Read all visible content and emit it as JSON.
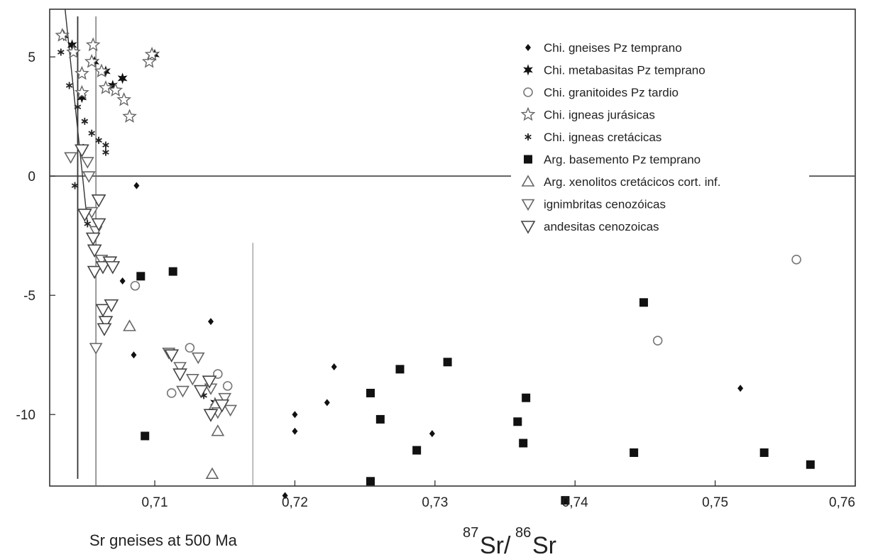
{
  "chart_data": {
    "type": "scatter",
    "xlim": [
      0.7025,
      0.76
    ],
    "ylim": [
      -13,
      7
    ],
    "x_ticks": [
      "0,71",
      "0,72",
      "0,73",
      "0,74",
      "0,75",
      "0,76"
    ],
    "y_ticks": [
      "5",
      "0",
      "-5",
      "-10"
    ],
    "xlabel": {
      "sup1": "87",
      "base1": "Sr/",
      "sup2": "86",
      "base2": "Sr"
    },
    "annotation": "Sr gneises at 500 Ma",
    "reference_lines": {
      "horizontal_y": 0,
      "vertical_x": [
        0.7045,
        0.7058,
        0.717
      ],
      "sloped_line": [
        [
          0.7036,
          7
        ],
        [
          0.7052,
          -2
        ]
      ]
    },
    "legend_position": "top-right",
    "series": [
      {
        "name": "Chi.  gneises Pz temprano",
        "marker": "diamond",
        "points": [
          [
            0.7087,
            -0.4
          ],
          [
            0.7077,
            -4.4
          ],
          [
            0.7085,
            -7.5
          ],
          [
            0.714,
            -6.1
          ],
          [
            0.7193,
            -13.4
          ],
          [
            0.72,
            -10
          ],
          [
            0.72,
            -10.7
          ],
          [
            0.7223,
            -9.5
          ],
          [
            0.7228,
            -8
          ],
          [
            0.7298,
            -10.8
          ],
          [
            0.7518,
            -8.9
          ]
        ]
      },
      {
        "name": "Chi. metabasitas Pz temprano",
        "marker": "star6",
        "points": [
          [
            0.7035,
            5.9
          ],
          [
            0.7041,
            5.5
          ],
          [
            0.7048,
            3.3
          ],
          [
            0.7057,
            4.8
          ],
          [
            0.7065,
            4.4
          ],
          [
            0.707,
            3.8
          ],
          [
            0.7077,
            4.1
          ],
          [
            0.71,
            5.1
          ],
          [
            0.7143,
            -9.5
          ]
        ]
      },
      {
        "name": "Chi. granitoides Pz tardio",
        "marker": "circle",
        "points": [
          [
            0.7086,
            -4.6
          ],
          [
            0.7112,
            -9.1
          ],
          [
            0.7125,
            -7.2
          ],
          [
            0.7145,
            -8.3
          ],
          [
            0.7152,
            -8.8
          ],
          [
            0.7459,
            -6.9
          ],
          [
            0.7558,
            -3.5
          ]
        ]
      },
      {
        "name": "Chi. igneas jurásicas",
        "marker": "star5",
        "points": [
          [
            0.7034,
            5.9
          ],
          [
            0.7042,
            5.2
          ],
          [
            0.7048,
            4.3
          ],
          [
            0.7048,
            3.5
          ],
          [
            0.7056,
            5.5
          ],
          [
            0.7055,
            4.8
          ],
          [
            0.7062,
            4.4
          ],
          [
            0.7065,
            3.7
          ],
          [
            0.7072,
            3.6
          ],
          [
            0.7078,
            3.2
          ],
          [
            0.7082,
            2.5
          ],
          [
            0.7096,
            4.8
          ],
          [
            0.7098,
            5.1
          ]
        ]
      },
      {
        "name": "Chi. igneas cretácicas",
        "marker": "asterisk",
        "points": [
          [
            0.7033,
            5.2
          ],
          [
            0.7039,
            3.8
          ],
          [
            0.7045,
            2.9
          ],
          [
            0.705,
            2.3
          ],
          [
            0.7055,
            1.8
          ],
          [
            0.706,
            1.5
          ],
          [
            0.7065,
            1.3
          ],
          [
            0.7065,
            1.0
          ],
          [
            0.7043,
            -0.4
          ],
          [
            0.7049,
            1.2
          ],
          [
            0.7052,
            -2.0
          ],
          [
            0.7135,
            -9.2
          ]
        ]
      },
      {
        "name": "Arg.  basemento Pz temprano",
        "marker": "square",
        "points": [
          [
            0.709,
            -4.2
          ],
          [
            0.7113,
            -4.0
          ],
          [
            0.7093,
            -10.9
          ],
          [
            0.7254,
            -9.1
          ],
          [
            0.7254,
            -12.8
          ],
          [
            0.7261,
            -10.2
          ],
          [
            0.7275,
            -8.1
          ],
          [
            0.7287,
            -11.5
          ],
          [
            0.7309,
            -7.8
          ],
          [
            0.7359,
            -10.3
          ],
          [
            0.7363,
            -11.2
          ],
          [
            0.7365,
            -9.3
          ],
          [
            0.7393,
            -13.6
          ],
          [
            0.7442,
            -11.6
          ],
          [
            0.7449,
            -5.3
          ],
          [
            0.7535,
            -11.6
          ],
          [
            0.7568,
            -12.1
          ]
        ]
      },
      {
        "name": "Arg. xenolitos cretácicos cort. inf.",
        "marker": "triangle-up",
        "points": [
          [
            0.7082,
            -6.3
          ],
          [
            0.7141,
            -12.5
          ],
          [
            0.7145,
            -10.7
          ],
          [
            0.7143,
            -9.6
          ]
        ]
      },
      {
        "name": "ignimbritas cenozóicas",
        "marker": "triangle-down",
        "points": [
          [
            0.704,
            0.8
          ],
          [
            0.7052,
            0.6
          ],
          [
            0.7053,
            0.0
          ],
          [
            0.7055,
            -1.5
          ],
          [
            0.7058,
            -2.3
          ],
          [
            0.7062,
            -3.5
          ],
          [
            0.7058,
            -7.2
          ],
          [
            0.711,
            -7.4
          ],
          [
            0.7118,
            -8.0
          ],
          [
            0.712,
            -9.0
          ],
          [
            0.7127,
            -8.5
          ],
          [
            0.7131,
            -7.6
          ],
          [
            0.714,
            -8.9
          ],
          [
            0.7145,
            -9.9
          ],
          [
            0.715,
            -9.3
          ],
          [
            0.7154,
            -9.8
          ]
        ]
      },
      {
        "name": "andesitas cenozoicas",
        "marker": "triangle-down-large",
        "points": [
          [
            0.7048,
            1.1
          ],
          [
            0.705,
            -1.6
          ],
          [
            0.7056,
            -2.6
          ],
          [
            0.7057,
            -3.1
          ],
          [
            0.706,
            -1.0
          ],
          [
            0.706,
            -2.0
          ],
          [
            0.7057,
            -4.0
          ],
          [
            0.7063,
            -3.8
          ],
          [
            0.7068,
            -3.6
          ],
          [
            0.707,
            -3.8
          ],
          [
            0.7063,
            -5.6
          ],
          [
            0.7065,
            -6.1
          ],
          [
            0.7069,
            -5.4
          ],
          [
            0.7064,
            -6.4
          ],
          [
            0.7112,
            -7.5
          ],
          [
            0.7118,
            -8.3
          ],
          [
            0.7133,
            -9.0
          ],
          [
            0.7139,
            -8.6
          ],
          [
            0.714,
            -10.0
          ],
          [
            0.7148,
            -9.6
          ]
        ]
      }
    ]
  }
}
